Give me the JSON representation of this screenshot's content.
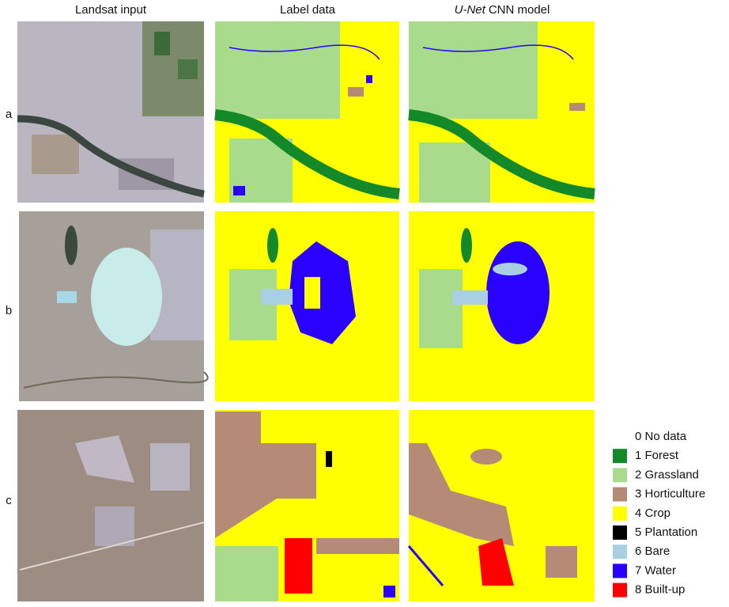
{
  "header": {
    "columns": [
      {
        "text": "Landsat input"
      },
      {
        "text": "Label data"
      },
      {
        "italic": "U-Net",
        "text": "CNN model"
      }
    ]
  },
  "rows": [
    "a",
    "b",
    "c"
  ],
  "legend": [
    {
      "label": "0 No data",
      "color": "#ffffff"
    },
    {
      "label": "1 Forest",
      "color": "#13892a"
    },
    {
      "label": "2 Grassland",
      "color": "#a8dc8c"
    },
    {
      "label": "3 Horticulture",
      "color": "#b58b78"
    },
    {
      "label": "4 Crop",
      "color": "#ffff00"
    },
    {
      "label": "5 Plantation",
      "color": "#000000"
    },
    {
      "label": "6 Bare",
      "color": "#a9cfe2"
    },
    {
      "label": "7 Water",
      "color": "#2a00ff"
    },
    {
      "label": "8 Built-up",
      "color": "#ff0000"
    }
  ]
}
